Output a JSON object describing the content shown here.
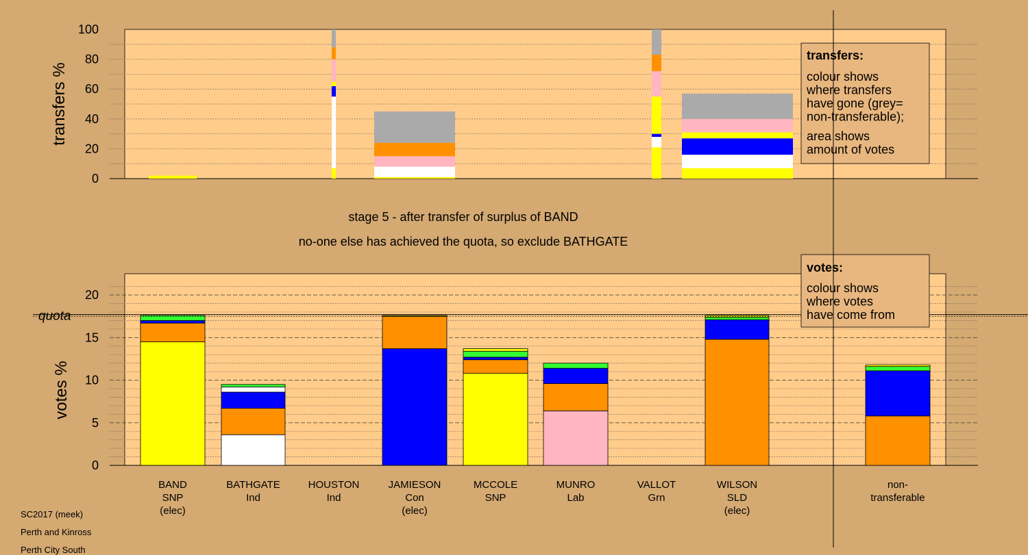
{
  "palette": {
    "background": "#D4A972",
    "panel": "#FFCC8C",
    "SNP": "#FFFF00",
    "Ind": "#FFFFFF",
    "Con": "#0000FF",
    "Lab": "#FFB6C1",
    "Grn": "#33FF33",
    "SLD": "#FF9100",
    "nontransferable": "#AAAAAA"
  },
  "captions": {
    "stage": "stage 5 - after transfer of surplus of BAND",
    "status": "no-one else has achieved the quota, so exclude BATHGATE"
  },
  "footer": {
    "line1": "SC2017 (meek)",
    "line2": "Perth and Kinross",
    "line3": "Perth City South"
  },
  "chart_data": [
    {
      "type": "bar",
      "ylabel": "transfers %",
      "ylim": [
        0,
        100
      ],
      "yticks": [
        0,
        20,
        40,
        60,
        80,
        100
      ],
      "grid": true,
      "legend": {
        "title": "transfers:",
        "lines1": [
          "colour shows",
          "where transfers",
          "have gone (grey=",
          "non-transferable);"
        ],
        "lines2": [
          "area shows",
          "amount of votes"
        ]
      },
      "series": [
        {
          "target": "BAND",
          "segments": [
            {
              "party": "SNP",
              "value": 2
            }
          ]
        },
        {
          "target": "BATHGATE",
          "segments": [
            {
              "party": "SNP",
              "value": 7
            },
            {
              "party": "Ind",
              "value": 48
            },
            {
              "party": "Con",
              "value": 7
            },
            {
              "party": "SNP",
              "value": 3
            },
            {
              "party": "Lab",
              "value": 15
            },
            {
              "party": "SLD",
              "value": 8
            },
            {
              "party": "nontransferable",
              "value": 12
            }
          ]
        },
        {
          "target": "JAMIESON",
          "segments": [
            {
              "party": "SNP",
              "value": 1
            },
            {
              "party": "Ind",
              "value": 7
            },
            {
              "party": "Lab",
              "value": 7
            },
            {
              "party": "SLD",
              "value": 9
            },
            {
              "party": "nontransferable",
              "value": 21
            }
          ]
        },
        {
          "target": "VALLOT",
          "segments": [
            {
              "party": "SNP",
              "value": 21
            },
            {
              "party": "Ind",
              "value": 7
            },
            {
              "party": "Con",
              "value": 2
            },
            {
              "party": "SNP",
              "value": 25
            },
            {
              "party": "Lab",
              "value": 17
            },
            {
              "party": "SLD",
              "value": 11
            },
            {
              "party": "nontransferable",
              "value": 17
            }
          ]
        },
        {
          "target": "WILSON",
          "segments": [
            {
              "party": "SNP",
              "value": 7
            },
            {
              "party": "Ind",
              "value": 9
            },
            {
              "party": "Con",
              "value": 11
            },
            {
              "party": "SNP",
              "value": 4
            },
            {
              "party": "Lab",
              "value": 9
            },
            {
              "party": "nontransferable",
              "value": 17
            }
          ]
        }
      ]
    },
    {
      "type": "bar",
      "ylabel": "votes %",
      "ylim": [
        0,
        22.5
      ],
      "yticks": [
        0,
        5,
        10,
        15,
        20
      ],
      "quota_label": "quota",
      "quota": 17.7,
      "grid": true,
      "legend": {
        "title": "votes:",
        "lines1": [
          "colour shows",
          "where votes",
          "have come from"
        ]
      },
      "categories": [
        {
          "lines": [
            "BAND",
            "SNP",
            "(elec)"
          ]
        },
        {
          "lines": [
            "BATHGATE",
            "Ind"
          ]
        },
        {
          "lines": [
            "HOUSTON",
            "Ind"
          ]
        },
        {
          "lines": [
            "JAMIESON",
            "Con",
            "(elec)"
          ]
        },
        {
          "lines": [
            "MCCOLE",
            "SNP"
          ]
        },
        {
          "lines": [
            "MUNRO",
            "Lab"
          ]
        },
        {
          "lines": [
            "VALLOT",
            "Grn"
          ]
        },
        {
          "lines": [
            "WILSON",
            "SLD",
            "(elec)"
          ]
        },
        {
          "lines": [
            "non-",
            "transferable"
          ]
        }
      ],
      "series": [
        {
          "candidate": "BAND",
          "segments": [
            {
              "party": "SNP",
              "value": 14.5
            },
            {
              "party": "SLD",
              "value": 2.2
            },
            {
              "party": "Con",
              "value": 0.3
            },
            {
              "party": "Grn",
              "value": 0.6
            }
          ]
        },
        {
          "candidate": "BATHGATE",
          "segments": [
            {
              "party": "Ind",
              "value": 3.6
            },
            {
              "party": "SLD",
              "value": 3.1
            },
            {
              "party": "Con",
              "value": 1.9
            },
            {
              "party": "Ind",
              "value": 0.6
            },
            {
              "party": "Grn",
              "value": 0.3
            }
          ]
        },
        {
          "candidate": "HOUSTON",
          "segments": []
        },
        {
          "candidate": "JAMIESON",
          "segments": [
            {
              "party": "Con",
              "value": 13.7
            },
            {
              "party": "SLD",
              "value": 3.8
            },
            {
              "party": "SNP",
              "value": 0.1
            }
          ]
        },
        {
          "candidate": "MCCOLE",
          "segments": [
            {
              "party": "SNP",
              "value": 10.8
            },
            {
              "party": "SLD",
              "value": 1.6
            },
            {
              "party": "Con",
              "value": 0.3
            },
            {
              "party": "Grn",
              "value": 0.7
            },
            {
              "party": "SNP",
              "value": 0.3
            }
          ]
        },
        {
          "candidate": "MUNRO",
          "segments": [
            {
              "party": "Lab",
              "value": 6.4
            },
            {
              "party": "SLD",
              "value": 3.2
            },
            {
              "party": "Con",
              "value": 1.8
            },
            {
              "party": "Grn",
              "value": 0.6
            }
          ]
        },
        {
          "candidate": "VALLOT",
          "segments": []
        },
        {
          "candidate": "WILSON",
          "segments": [
            {
              "party": "SLD",
              "value": 14.8
            },
            {
              "party": "Con",
              "value": 2.3
            },
            {
              "party": "Grn",
              "value": 0.3
            },
            {
              "party": "SNP",
              "value": 0.2
            }
          ]
        },
        {
          "candidate": "non-transferable",
          "segments": [
            {
              "party": "SLD",
              "value": 5.8
            },
            {
              "party": "Con",
              "value": 5.3
            },
            {
              "party": "Grn",
              "value": 0.5
            },
            {
              "party": "SNP",
              "value": 0.2
            }
          ]
        }
      ]
    }
  ]
}
